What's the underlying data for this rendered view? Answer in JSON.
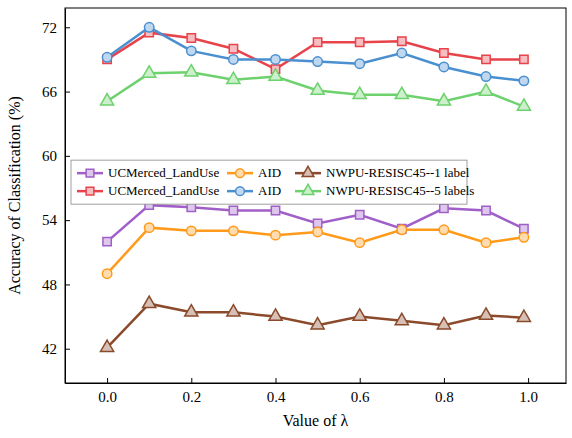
{
  "chart_data": {
    "type": "line",
    "x_label": "Value of λ",
    "y_label": "Accuracy of Classification (%)",
    "x": [
      0.0,
      0.1,
      0.2,
      0.3,
      0.4,
      0.5,
      0.6,
      0.7,
      0.8,
      0.9,
      0.99
    ],
    "xlim": [
      -0.1,
      1.09
    ],
    "xticks": [
      {
        "value": 0,
        "label": "0.0"
      },
      {
        "value": 0.2,
        "label": "0.2"
      },
      {
        "value": 0.4,
        "label": "0.4"
      },
      {
        "value": 0.6,
        "label": "0.6"
      },
      {
        "value": 0.8,
        "label": "0.8"
      },
      {
        "value": 1,
        "label": "1.0"
      }
    ],
    "ylim": [
      38.8,
      73.8
    ],
    "yticks": [
      42,
      48,
      54,
      60,
      66,
      72
    ],
    "legend": "center-left",
    "series": [
      {
        "name": "UCMerced_LandUse",
        "color": "#a05fc8",
        "marker": "square",
        "values": [
          52.0,
          55.4,
          55.2,
          54.9,
          54.9,
          53.7,
          54.5,
          53.2,
          55.1,
          54.9,
          53.2
        ]
      },
      {
        "name": "AID",
        "color": "#ff9a1a",
        "marker": "circle",
        "values": [
          49.0,
          53.3,
          53.0,
          53.0,
          52.6,
          52.9,
          51.9,
          53.1,
          53.1,
          51.9,
          52.4
        ]
      },
      {
        "name": "NWPU-RESISC45--1 label",
        "color": "#8b4a2b",
        "marker": "triangle",
        "values": [
          42.1,
          46.2,
          45.4,
          45.4,
          45.0,
          44.2,
          45.0,
          44.6,
          44.2,
          45.1,
          44.9
        ]
      },
      {
        "name": "UCMerced_LandUse",
        "color": "#e8424a",
        "marker": "square",
        "values": [
          69.0,
          71.5,
          71.0,
          70.0,
          68.1,
          70.6,
          70.6,
          70.7,
          69.6,
          69.0,
          69.0
        ]
      },
      {
        "name": "AID",
        "color": "#4a8fd0",
        "marker": "circle",
        "values": [
          69.2,
          72.0,
          69.8,
          69.0,
          69.0,
          68.8,
          68.6,
          69.6,
          68.3,
          67.4,
          67.0
        ]
      },
      {
        "name": "NWPU-RESISC45--5 labels",
        "color": "#6dd26d",
        "marker": "triangle",
        "values": [
          65.1,
          67.7,
          67.8,
          67.1,
          67.4,
          66.1,
          65.7,
          65.7,
          65.1,
          66.0,
          64.6
        ]
      }
    ]
  }
}
